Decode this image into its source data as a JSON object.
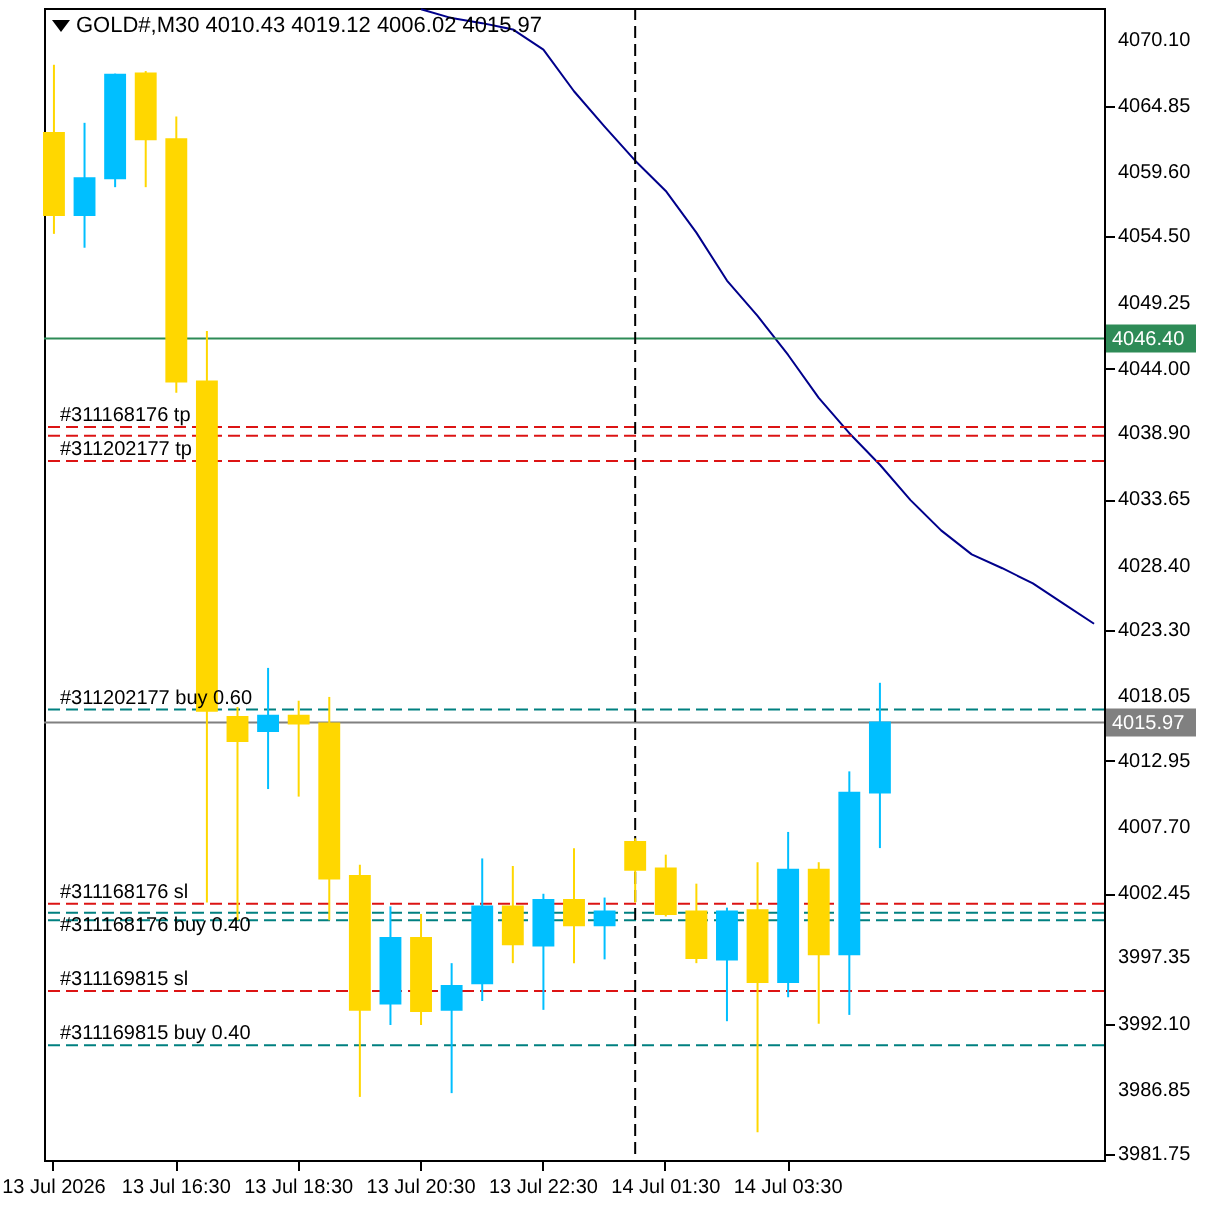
{
  "chart_data": {
    "type": "candlestick",
    "title": "GOLD#,M30 4010.43 4019.12 4006.02 4015.97",
    "categories": [
      "13 Jul 2026",
      null,
      null,
      null,
      "13 Jul 16:30",
      null,
      null,
      null,
      "13 Jul 18:30",
      null,
      null,
      null,
      "13 Jul 20:30",
      null,
      null,
      null,
      "13 Jul 22:30",
      null,
      null,
      null,
      "14 Jul 01:30",
      null,
      null,
      null,
      "14 Jul 03:30",
      null,
      null,
      null,
      null,
      null,
      null,
      null,
      null,
      null,
      null
    ],
    "ohlc": [
      [
        4062.7,
        4068.1,
        4054.7,
        4056.2
      ],
      [
        4056.2,
        4063.5,
        4053.6,
        4059.1
      ],
      [
        4059.1,
        4067.4,
        4058.4,
        4067.3
      ],
      [
        4067.4,
        4067.6,
        4058.4,
        4062.2
      ],
      [
        4062.2,
        4064.0,
        4042.1,
        4043.0
      ],
      [
        4043.0,
        4047.0,
        4001.7,
        4016.9
      ],
      [
        4016.4,
        4017.2,
        4000.3,
        4014.5
      ],
      [
        4015.3,
        4020.3,
        4010.7,
        4016.5
      ],
      [
        4016.5,
        4017.7,
        4010.1,
        4015.9
      ],
      [
        4015.9,
        4018.0,
        4000.3,
        4003.6
      ],
      [
        4003.8,
        4004.7,
        3986.3,
        3993.2
      ],
      [
        3993.7,
        4001.4,
        3992.0,
        3998.9
      ],
      [
        3998.9,
        4000.8,
        3992.0,
        3993.1
      ],
      [
        3993.2,
        3996.9,
        3986.6,
        3995.1
      ],
      [
        3995.3,
        4005.2,
        3993.9,
        4001.4
      ],
      [
        4001.4,
        4004.6,
        3996.9,
        3998.4
      ],
      [
        3998.3,
        4002.4,
        3993.2,
        4001.9
      ],
      [
        4001.9,
        4006.0,
        3996.9,
        3999.9
      ],
      [
        3999.9,
        4002.1,
        3997.2,
        4001.0
      ],
      [
        4006.5,
        4006.8,
        4001.7,
        4004.3
      ],
      [
        4004.4,
        4005.5,
        4000.6,
        4000.8
      ],
      [
        4001.0,
        4003.2,
        3996.9,
        3997.3
      ],
      [
        3997.2,
        4001.3,
        3992.3,
        4001.0
      ],
      [
        4001.1,
        4004.9,
        3983.5,
        3995.4
      ],
      [
        3995.4,
        4007.3,
        3994.2,
        4004.3
      ],
      [
        4004.3,
        4004.9,
        3992.1,
        3997.6
      ],
      [
        3997.6,
        4012.1,
        3992.8,
        4010.4
      ],
      [
        4010.43,
        4019.12,
        4006.02,
        4015.97
      ],
      null,
      null,
      null,
      null,
      null,
      null,
      null
    ],
    "colors": [
      "#ffd700",
      "#00bfff",
      "#00bfff",
      "#ffd700",
      "#ffd700",
      "#ffd700",
      "#ffd700",
      "#00bfff",
      "#ffd700",
      "#ffd700",
      "#ffd700",
      "#00bfff",
      "#ffd700",
      "#00bfff",
      "#00bfff",
      "#ffd700",
      "#00bfff",
      "#ffd700",
      "#00bfff",
      "#ffd700",
      "#ffd700",
      "#ffd700",
      "#00bfff",
      "#ffd700",
      "#00bfff",
      "#ffd700",
      "#00bfff",
      "#00bfff",
      null,
      null,
      null,
      null,
      null,
      null,
      null
    ],
    "series": [
      {
        "type": "line",
        "color": "#00008b",
        "values": [
          null,
          null,
          null,
          null,
          null,
          null,
          null,
          null,
          null,
          null,
          null,
          null,
          4072.5,
          4071.8,
          4071.4,
          4070.9,
          4069.3,
          4066.0,
          4063.2,
          4060.5,
          4058.1,
          4054.8,
          4051.0,
          4048.2,
          4045.1,
          4041.7,
          4038.9,
          4036.4,
          4033.6,
          4031.2,
          4029.3,
          4028.2,
          4027.0,
          4025.4,
          4023.8
        ]
      }
    ],
    "ylim": [
      3981.3,
      4072.6
    ],
    "yticks": [
      {
        "value": 4070.1,
        "label": "4070.10"
      },
      4064.85,
      {
        "value": 4059.6,
        "label": "4059.60"
      },
      {
        "value": 4054.5,
        "label": "4054.50"
      },
      4049.25,
      {
        "value": 4044,
        "label": "4044.00"
      },
      {
        "value": 4038.9,
        "label": "4038.90"
      },
      4033.65,
      {
        "value": 4028.4,
        "label": "4028.40"
      },
      {
        "value": 4023.3,
        "label": "4023.30"
      },
      4018.05,
      4012.95,
      {
        "value": 4007.7,
        "label": "4007.70"
      },
      4002.45,
      3997.35,
      {
        "value": 3992.1,
        "label": "3992.10"
      },
      3986.85,
      3981.75
    ],
    "line_style": "solid",
    "ref_lines": [
      {
        "axis": "y",
        "value": 4046.4,
        "label": "4046.40",
        "color": "#2e8b57",
        "line_style": "solid"
      },
      {
        "axis": "y",
        "value": 4015.97,
        "label": "4015.97",
        "color": "#808080",
        "line_style": "solid"
      },
      {
        "axis": "y",
        "value": 4039.4,
        "label": "#311168176 tp",
        "color": "#dc1414",
        "line_style": "dashed"
      },
      {
        "axis": "y",
        "value": 4038.7,
        "color": "#dc1414",
        "line_style": "dashed"
      },
      {
        "axis": "y",
        "value": 4036.7,
        "label": "#311202177 tp",
        "color": "#dc1414",
        "line_style": "dashed"
      },
      {
        "axis": "y",
        "value": 4017.0,
        "label": "#311202177 buy 0.60",
        "color": "#008080",
        "line_style": "dashed"
      },
      {
        "axis": "y",
        "value": 4001.6,
        "label": "#311168176 sl",
        "color": "#dc1414",
        "line_style": "dashed"
      },
      {
        "axis": "y",
        "value": 4000.9,
        "label": "#311168176 buy 0.40",
        "color": "#008080",
        "line_style": "dashed"
      },
      {
        "axis": "y",
        "value": 4000.3,
        "color": "#008080",
        "line_style": "dashed"
      },
      {
        "axis": "y",
        "value": 3994.7,
        "label": "#311169815 sl",
        "color": "#dc1414",
        "line_style": "dashed"
      },
      {
        "axis": "y",
        "value": 3990.4,
        "label": "#311169815 buy 0.40",
        "color": "#008080",
        "line_style": "dashed"
      }
    ]
  }
}
